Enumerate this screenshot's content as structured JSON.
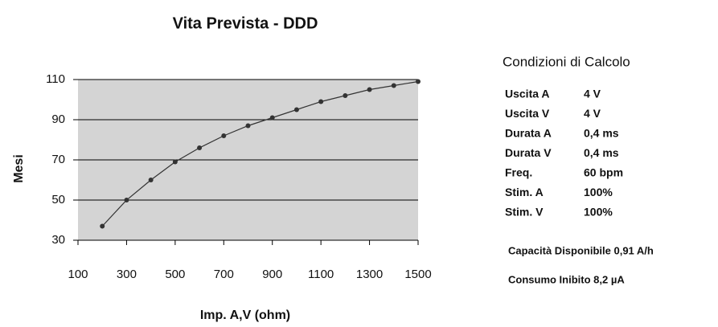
{
  "chart_data": {
    "type": "line",
    "title": "Vita Prevista - DDD",
    "x_label": "Imp. A,V (ohm)",
    "y_label": "Mesi",
    "x": [
      200,
      300,
      400,
      500,
      600,
      700,
      800,
      900,
      1000,
      1100,
      1200,
      1300,
      1400,
      1500
    ],
    "series": [
      {
        "color": "#333333",
        "values": [
          37,
          50,
          60,
          69,
          76,
          82,
          87,
          91,
          95,
          99,
          102,
          105,
          107,
          109
        ]
      }
    ],
    "xlim": [
      100,
      1500
    ],
    "xticks": [
      100,
      300,
      500,
      700,
      900,
      1100,
      1300,
      1500
    ],
    "ylim": [
      30,
      110
    ],
    "yticks": [
      30,
      50,
      70,
      90,
      110
    ],
    "grid": true,
    "background": "#d4d4d4"
  },
  "panel": {
    "title": "Condizioni di Calcolo",
    "rows": [
      [
        "Uscita A",
        "4 V"
      ],
      [
        "Uscita V",
        "4 V"
      ],
      [
        "Durata A",
        "0,4 ms"
      ],
      [
        "Durata V",
        "0,4 ms"
      ],
      [
        "Freq.",
        "60 bpm"
      ],
      [
        "Stim. A",
        "100%"
      ],
      [
        "Stim. V",
        "100%"
      ]
    ],
    "notes": [
      "Capacità Disponibile 0,91 A/h",
      "Consumo Inibito 8,2 µA"
    ]
  }
}
